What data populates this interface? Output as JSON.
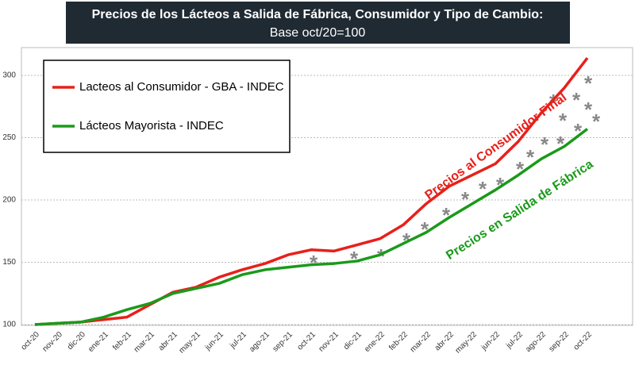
{
  "chart_data": {
    "type": "line",
    "title": "Precios de los Lácteos a Salida de Fábrica, Consumidor y Tipo de Cambio:",
    "subtitle": "Base oct/20=100",
    "categories": [
      "oct-20",
      "nov-20",
      "dic-20",
      "ene-21",
      "feb-21",
      "mar-21",
      "abr-21",
      "may-21",
      "jun-21",
      "jul-21",
      "ago-21",
      "sep-21",
      "oct-21",
      "nov-21",
      "dic-21",
      "ene-22",
      "feb-22",
      "mar-22",
      "abr-22",
      "may-22",
      "jun-22",
      "jul-22",
      "ago-22",
      "sep-22",
      "oct-22"
    ],
    "series": [
      {
        "name": "Lacteos al Consumidor - GBA - INDEC",
        "color": "#e8201a",
        "values": [
          100,
          101,
          102,
          104,
          106,
          116,
          126,
          130,
          138,
          144,
          149,
          156,
          160,
          159,
          164,
          169,
          180,
          197,
          211,
          220,
          229,
          247,
          270,
          290,
          314
        ]
      },
      {
        "name": "Lácteos Mayorista - INDEC",
        "color": "#1a9a1a",
        "values": [
          100,
          101,
          102,
          106,
          112,
          117,
          125,
          129,
          133,
          140,
          144,
          146,
          148,
          149,
          151,
          156,
          165,
          174,
          186,
          197,
          208,
          220,
          233,
          243,
          257
        ]
      }
    ],
    "annotations": [
      "Precios al Consumidor Final",
      "Precios en Salida de Fábrica"
    ],
    "ylim": [
      100,
      320
    ],
    "yticks": [
      100,
      150,
      200,
      250,
      300
    ],
    "grid": true
  }
}
